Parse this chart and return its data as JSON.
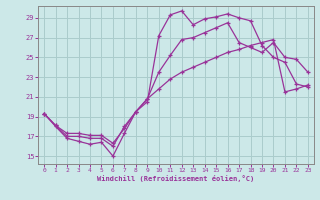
{
  "xlabel": "Windchill (Refroidissement éolien,°C)",
  "bg_color": "#cce8e8",
  "grid_color": "#aacccc",
  "line_color": "#993399",
  "x_ticks": [
    0,
    1,
    2,
    3,
    4,
    5,
    6,
    7,
    8,
    9,
    10,
    11,
    12,
    13,
    14,
    15,
    16,
    17,
    18,
    19,
    20,
    21,
    22,
    23
  ],
  "y_ticks": [
    15,
    17,
    19,
    21,
    23,
    25,
    27,
    29
  ],
  "xlim": [
    -0.5,
    23.5
  ],
  "ylim": [
    14.2,
    30.2
  ],
  "series1_y": [
    19.3,
    18.0,
    16.8,
    16.5,
    16.2,
    16.4,
    15.0,
    17.3,
    19.5,
    20.5,
    27.2,
    29.3,
    29.7,
    28.3,
    28.9,
    29.1,
    29.4,
    29.0,
    28.7,
    26.2,
    25.0,
    24.5,
    22.3,
    22.0
  ],
  "series2_y": [
    19.3,
    18.1,
    17.3,
    17.3,
    17.1,
    17.1,
    16.3,
    17.8,
    19.5,
    20.8,
    21.8,
    22.8,
    23.5,
    24.0,
    24.5,
    25.0,
    25.5,
    25.8,
    26.2,
    26.5,
    26.8,
    21.5,
    21.8,
    22.2
  ],
  "series3_y": [
    19.3,
    18.1,
    17.0,
    17.0,
    16.8,
    16.8,
    16.0,
    18.0,
    19.5,
    20.8,
    23.5,
    25.2,
    26.8,
    27.0,
    27.5,
    28.0,
    28.5,
    26.5,
    26.0,
    25.5,
    26.5,
    25.0,
    24.8,
    23.5
  ]
}
